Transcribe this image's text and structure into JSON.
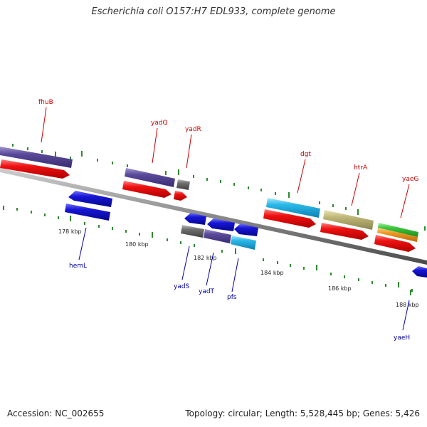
{
  "title": "Escherichia coli O157:H7 EDL933, complete genome",
  "footer": {
    "accession": "Accession: NC_002655",
    "summary": "Topology: circular; Length: 5,528,445 bp; Genes: 5,426"
  },
  "colors": {
    "backbone": "#8a8a8a",
    "tick": "#2e8b2e",
    "label_forward": "#cc0000",
    "label_reverse": "#0000aa",
    "cds_red": "#ee1111",
    "gene_purple": "#5a4a9a",
    "gene_blue": "#1616d6",
    "gene_cyan": "#28b8e8",
    "gene_gray": "#707070",
    "gene_khaki": "#c0b878",
    "gene_green": "#3cc83c",
    "gene_orange": "#f09a28"
  },
  "scale_labels": [
    "178 kbp",
    "180 kbp",
    "182 kbp",
    "184 kbp",
    "186 kbp",
    "188 kbp"
  ],
  "forward_genes": [
    "fhuB",
    "yadQ",
    "yadR",
    "dgt",
    "htrA",
    "yaeG"
  ],
  "reverse_genes": [
    "hemL",
    "yadS",
    "yadT",
    "pfs",
    "yaeH"
  ]
}
